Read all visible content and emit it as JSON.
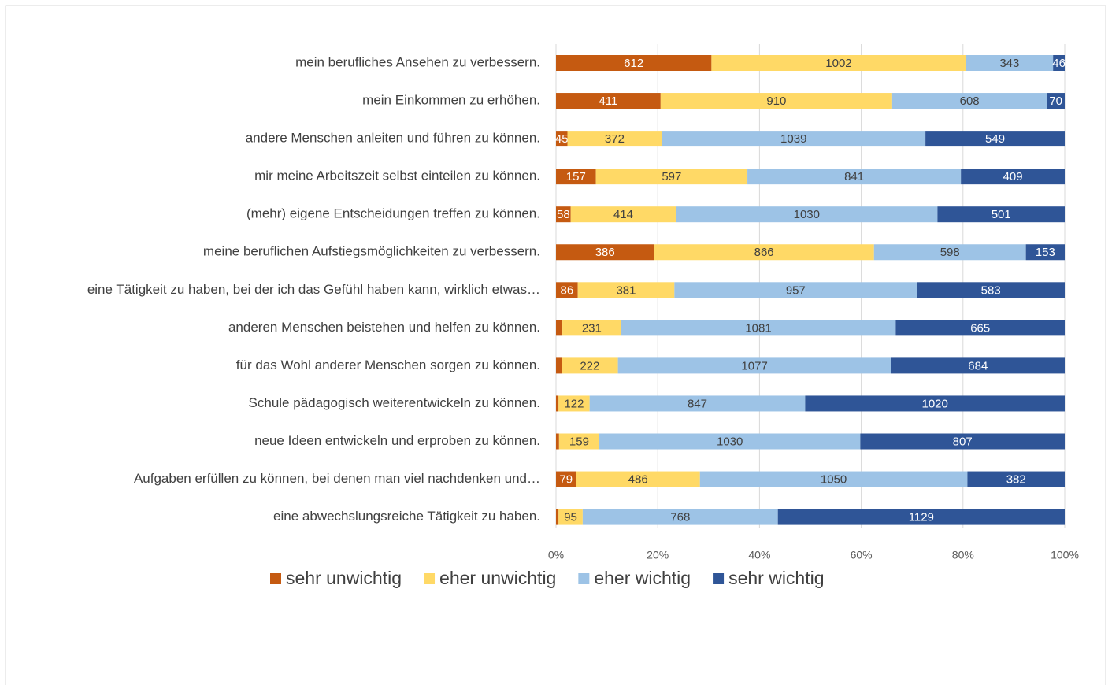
{
  "chart_data": {
    "type": "bar",
    "orientation": "horizontal",
    "stack": "percent",
    "categories": [
      "mein berufliches Ansehen zu verbessern.",
      "mein Einkommen zu erhöhen.",
      "andere Menschen anleiten und führen zu können.",
      "mir meine Arbeitszeit selbst einteilen zu können.",
      "(mehr) eigene Entscheidungen treffen zu können.",
      "meine beruflichen Aufstiegsmöglichkeiten zu verbessern.",
      "eine Tätigkeit zu haben, bei der ich das Gefühl haben kann, wirklich etwas…",
      "anderen Menschen beistehen und helfen zu können.",
      "für das Wohl anderer Menschen sorgen zu können.",
      "Schule pädagogisch weiterentwickeln zu können.",
      "neue Ideen entwickeln und erproben zu können.",
      "Aufgaben erfüllen zu können, bei denen man viel nachdenken und…",
      "eine abwechslungsreiche Tätigkeit zu haben."
    ],
    "series": [
      {
        "name": "sehr unwichtig",
        "color": "#c55a11",
        "values": [
          612,
          411,
          45,
          157,
          58,
          386,
          86,
          25,
          22,
          10,
          12,
          79,
          10
        ]
      },
      {
        "name": "eher unwichtig",
        "color": "#ffd966",
        "values": [
          1002,
          910,
          372,
          597,
          414,
          866,
          381,
          231,
          222,
          122,
          159,
          486,
          95
        ]
      },
      {
        "name": "eher wichtig",
        "color": "#9dc3e6",
        "values": [
          343,
          608,
          1039,
          841,
          1030,
          598,
          957,
          1081,
          1077,
          847,
          1030,
          1050,
          768
        ]
      },
      {
        "name": "sehr wichtig",
        "color": "#2f5597",
        "values": [
          46,
          70,
          549,
          409,
          501,
          153,
          583,
          665,
          684,
          1020,
          807,
          382,
          1129
        ]
      }
    ],
    "xlim": [
      0,
      100
    ],
    "xticks": [
      {
        "value": 0,
        "label": "0%"
      },
      {
        "value": 20,
        "label": "20%"
      },
      {
        "value": 40,
        "label": "40%"
      },
      {
        "value": 60,
        "label": "60%"
      },
      {
        "value": 80,
        "label": "80%"
      },
      {
        "value": 100,
        "label": "100%"
      }
    ],
    "grid": true,
    "legend": "bottom"
  }
}
